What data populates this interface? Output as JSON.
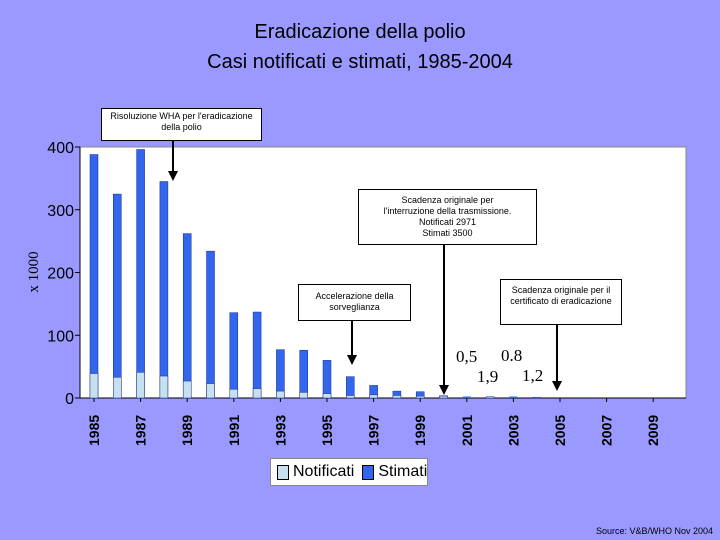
{
  "title": {
    "line1": "Eradicazione della polio",
    "line2": "Casi notificati e stimati, 1985-2004"
  },
  "source": "Source: V&B/WHO Nov 2004",
  "colors": {
    "background": "#9999ff",
    "notified": "#c6e0f0",
    "estimated": "#3366ee",
    "plot": "#ffffff"
  },
  "annotations": {
    "wha": "Risoluzione WHA per l'eradicazione della polio",
    "deadline_interruption_1": "Scadenza originale per",
    "deadline_interruption_2": "l'interruzione della trasmissione.",
    "deadline_interruption_3": "Notificati 2971",
    "deadline_interruption_4": "Stimati 3500",
    "surveillance": "Accelerazione della sorveglianza",
    "certification": "Scadenza originale per il certificato di eradicazione"
  },
  "small_values": {
    "v2001_est": "0,5",
    "v2003_est": "0.8",
    "v2002_est": "1,9",
    "v2004_est": "1,2"
  },
  "chart_data": {
    "type": "bar",
    "title": "Eradicazione della polio — Casi notificati e stimati, 1985-2004",
    "ylabel": "x 1000",
    "xlabel": "",
    "ylim": [
      0,
      400
    ],
    "yticks": [
      0,
      100,
      200,
      300,
      400
    ],
    "xtick_labels": [
      "1985",
      "1987",
      "1989",
      "1991",
      "1993",
      "1995",
      "1997",
      "1999",
      "2001",
      "2003",
      "2005",
      "2007",
      "2009"
    ],
    "categories": [
      "1985",
      "1986",
      "1987",
      "1988",
      "1989",
      "1990",
      "1991",
      "1992",
      "1993",
      "1994",
      "1995",
      "1996",
      "1997",
      "1998",
      "1999",
      "2000",
      "2001",
      "2002",
      "2003",
      "2004"
    ],
    "series": [
      {
        "name": "Notificati",
        "values": [
          39,
          33,
          41,
          35,
          27,
          23,
          14,
          15,
          11,
          9,
          7,
          4,
          5,
          4,
          3,
          3,
          0.5,
          1.9,
          0.8,
          1.2
        ]
      },
      {
        "name": "Stimati",
        "values": [
          388,
          325,
          396,
          345,
          262,
          234,
          136,
          137,
          77,
          76,
          60,
          34,
          20,
          11,
          10,
          3.5,
          0.5,
          1.9,
          0.8,
          1.2
        ]
      }
    ],
    "legend": [
      "Notificati",
      "Stimati"
    ],
    "legend_position": "bottom",
    "grid": false
  }
}
